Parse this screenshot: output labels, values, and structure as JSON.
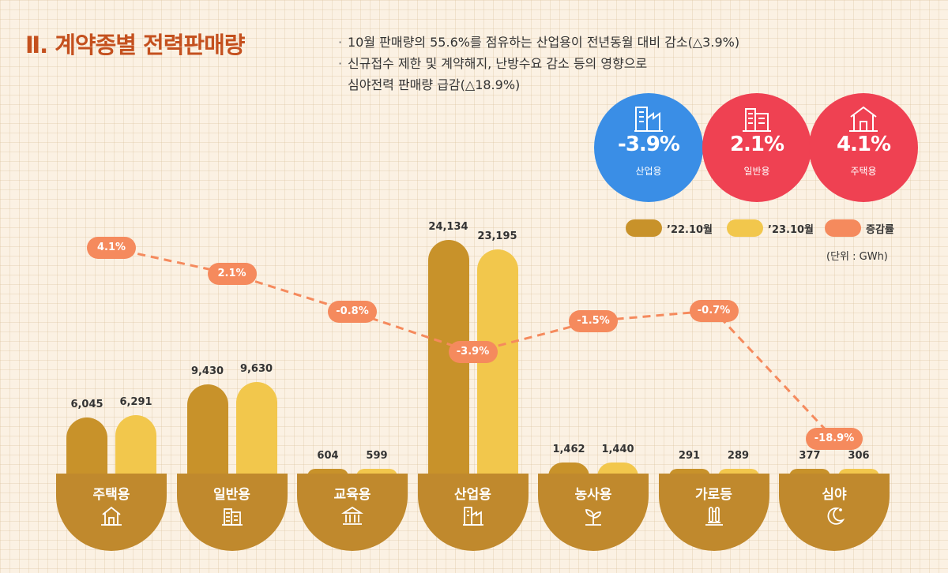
{
  "header": {
    "title": "Ⅱ. 계약종별 전력판매량",
    "notes": [
      "10월 판매량의 55.6%를 점유하는 산업용이 전년동월 대비 감소(△3.9%)",
      "신규접수 제한 및 계약해지, 난방수요 감소 등의 영향으로",
      "심야전력 판매량 급감(△18.9%)"
    ]
  },
  "highlights": [
    {
      "pct": "-3.9%",
      "label": "산업용",
      "color": "#3a8ee6",
      "icon": "factory-icon"
    },
    {
      "pct": "2.1%",
      "label": "일반용",
      "color": "#ef4152",
      "icon": "building-icon"
    },
    {
      "pct": "4.1%",
      "label": "주택용",
      "color": "#ef4152",
      "icon": "house-icon"
    }
  ],
  "legend": {
    "prev": "’22.10월",
    "curr": "’23.10월",
    "rate": "증감률"
  },
  "unit_label": "(단위 : GWh)",
  "chart_data": {
    "type": "bar",
    "title": "계약종별 전력판매량",
    "unit": "GWh",
    "categories": [
      "주택용",
      "일반용",
      "교육용",
      "산업용",
      "농사용",
      "가로등",
      "심야"
    ],
    "series": [
      {
        "name": "’22.10월",
        "values": [
          6045,
          9430,
          604,
          24134,
          1462,
          291,
          377
        ],
        "color": "#c8922a"
      },
      {
        "name": "’23.10월",
        "values": [
          6291,
          9630,
          599,
          23195,
          1440,
          289,
          306
        ],
        "color": "#f2c74c"
      }
    ],
    "value_labels": {
      "prev": [
        "6,045",
        "9,430",
        "604",
        "24,134",
        "1,462",
        "291",
        "377"
      ],
      "curr": [
        "6,291",
        "9,630",
        "599",
        "23,195",
        "1,440",
        "289",
        "306"
      ]
    },
    "rate": {
      "name": "증감률",
      "values": [
        4.1,
        2.1,
        -0.8,
        -3.9,
        -1.5,
        -0.7,
        -18.9
      ],
      "labels": [
        "4.1%",
        "2.1%",
        "-0.8%",
        "-3.9%",
        "-1.5%",
        "-0.7%",
        "-18.9%"
      ],
      "color": "#f58a5d"
    },
    "category_icons": [
      "house-icon",
      "building-icon",
      "school-icon",
      "factory-icon",
      "sprout-icon",
      "streetlight-icon",
      "moon-icon"
    ],
    "ylim": [
      0,
      24134
    ]
  }
}
